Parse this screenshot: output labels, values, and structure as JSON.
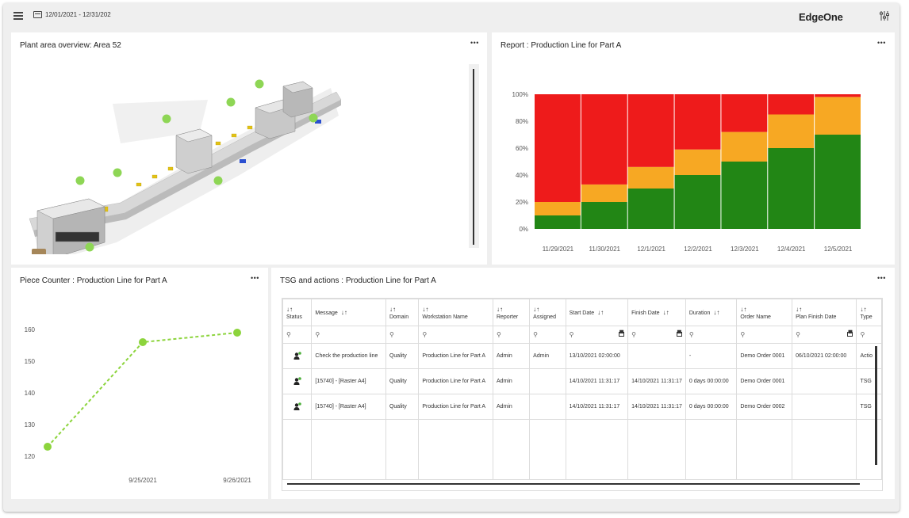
{
  "topbar": {
    "date_range": "12/01/2021 - 12/31/202",
    "brand": "EdgeOne"
  },
  "icons": {
    "menu": "hamburger-menu-icon",
    "calendar": "calendar-icon",
    "settings": "sliders-settings-icon",
    "more": "more-options-icon",
    "sort": "sort-icon",
    "search": "search-icon",
    "status": "user-status-icon"
  },
  "colors": {
    "red": "#ee1b1b",
    "orange": "#f7a823",
    "green": "#228615",
    "lime": "#8cd43c",
    "green_dot": "#8ed655"
  },
  "overview": {
    "title": "Plant area overview: Area 52",
    "more": "•••"
  },
  "report": {
    "title": "Report : Production Line for Part A",
    "more": "•••"
  },
  "counter": {
    "title": "Piece Counter : Production Line for Part A",
    "more": "•••"
  },
  "tsg": {
    "title": "TSG and actions : Production Line for Part A",
    "more": "•••",
    "columns": [
      "Status",
      "Message",
      "Domain",
      "Workstation Name",
      "Reporter",
      "Assigned",
      "Start Date",
      "Finish Date",
      "Duration",
      "Order Name",
      "Plan Finish Date",
      "Type"
    ],
    "rows": [
      [
        "",
        "Check the production line",
        "Quality",
        "Production Line for Part A",
        "Admin",
        "Admin",
        "13/10/2021 02:00:00",
        "",
        "-",
        "Demo Order 0001",
        "06/10/2021 02:00:00",
        "Actio"
      ],
      [
        "",
        "[15740] - [Raster A4]",
        "Quality",
        "Production Line for Part A",
        "Admin",
        "",
        "14/10/2021 11:31:17",
        "14/10/2021 11:31:17",
        "0 days 00:00:00",
        "Demo Order 0001",
        "",
        "TSG"
      ],
      [
        "",
        "[15740] - [Raster A4]",
        "Quality",
        "Production Line for Part A",
        "Admin",
        "",
        "14/10/2021 11:31:17",
        "14/10/2021 11:31:17",
        "0 days 00:00:00",
        "Demo Order 0002",
        "",
        "TSG"
      ]
    ]
  },
  "chart_data": [
    {
      "type": "bar",
      "stacked": true,
      "percent": true,
      "categories": [
        "11/29/2021",
        "11/30/2021",
        "12/1/2021",
        "12/2/2021",
        "12/3/2021",
        "12/4/2021",
        "12/5/2021"
      ],
      "series": [
        {
          "color": "#228615",
          "values": [
            10,
            20,
            30,
            40,
            50,
            60,
            70
          ]
        },
        {
          "color": "#f7a823",
          "values": [
            10,
            13,
            16,
            19,
            22,
            25,
            28
          ]
        },
        {
          "color": "#ee1b1b",
          "values": [
            80,
            67,
            54,
            41,
            28,
            15,
            2
          ]
        }
      ],
      "yticks": [
        "0%",
        "20%",
        "40%",
        "60%",
        "80%",
        "100%"
      ],
      "ylim": [
        0,
        100
      ],
      "grid": false
    },
    {
      "type": "line",
      "x": [
        "9/24/2021",
        "9/25/2021",
        "9/26/2021"
      ],
      "x_tick_labels": [
        "",
        "9/25/2021",
        "9/26/2021"
      ],
      "series": [
        {
          "values": [
            123,
            156,
            159
          ],
          "color": "#8cd43c",
          "dashed": true
        }
      ],
      "yticks": [
        "120",
        "130",
        "140",
        "150",
        "160"
      ],
      "ylim": [
        117,
        164
      ]
    }
  ]
}
